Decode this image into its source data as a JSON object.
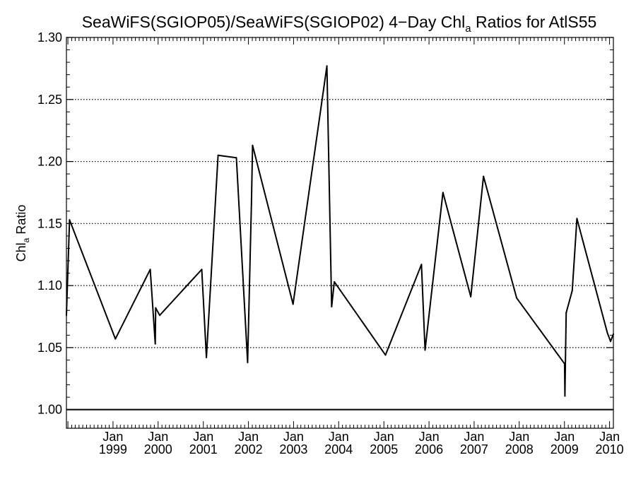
{
  "chart_data": {
    "type": "line",
    "title": {
      "main": "SeaWiFS(SGIOP05)/SeaWiFS(SGIOP02) 4−Day Chl",
      "sub": "a",
      "rest": " Ratios for AtlS55"
    },
    "ylabel": {
      "main": "Chl",
      "sub": "a",
      "rest": " Ratio"
    },
    "xlabel": "",
    "ylim": [
      0.985,
      1.3
    ],
    "yticks": [
      "1.00",
      "1.05",
      "1.10",
      "1.15",
      "1.20",
      "1.25",
      "1.30"
    ],
    "ytick_values": [
      1.0,
      1.05,
      1.1,
      1.15,
      1.2,
      1.25,
      1.3
    ],
    "xlim": [
      "1997-12-20",
      "2010-02-01"
    ],
    "xticks": [
      {
        "date": "1999-01-01",
        "month": "Jan",
        "year": "1999"
      },
      {
        "date": "2000-01-01",
        "month": "Jan",
        "year": "2000"
      },
      {
        "date": "2001-01-01",
        "month": "Jan",
        "year": "2001"
      },
      {
        "date": "2002-01-01",
        "month": "Jan",
        "year": "2002"
      },
      {
        "date": "2003-01-01",
        "month": "Jan",
        "year": "2003"
      },
      {
        "date": "2004-01-01",
        "month": "Jan",
        "year": "2004"
      },
      {
        "date": "2005-01-01",
        "month": "Jan",
        "year": "2005"
      },
      {
        "date": "2006-01-01",
        "month": "Jan",
        "year": "2006"
      },
      {
        "date": "2007-01-01",
        "month": "Jan",
        "year": "2007"
      },
      {
        "date": "2008-01-01",
        "month": "Jan",
        "year": "2008"
      },
      {
        "date": "2009-01-01",
        "month": "Jan",
        "year": "2009"
      },
      {
        "date": "2010-01-01",
        "month": "Jan",
        "year": "2010"
      }
    ],
    "grid": "horizontal-dotted",
    "reference_line": 1.0,
    "series": [
      {
        "x": [
          "1997-12-20",
          "1998-01-14",
          "1999-01-20",
          "1999-10-29",
          "1999-12-09",
          "1999-12-12",
          "2000-01-14",
          "2000-12-19",
          "2001-01-26",
          "2001-04-30",
          "2001-09-25",
          "2001-12-25",
          "2002-01-25",
          "2002-02-03",
          "2002-12-28",
          "2003-09-28",
          "2003-11-05",
          "2003-11-27",
          "2005-01-14",
          "2005-11-01",
          "2005-11-30",
          "2006-04-24",
          "2006-12-05",
          "2007-03-18",
          "2007-12-11",
          "2009-01-02",
          "2009-01-05",
          "2009-01-15",
          "2009-03-05",
          "2009-04-12",
          "2009-12-14",
          "2010-01-09",
          "2010-02-01"
        ],
        "y": [
          1.076,
          1.153,
          1.057,
          1.113,
          1.053,
          1.082,
          1.076,
          1.113,
          1.042,
          1.205,
          1.203,
          1.038,
          1.166,
          1.213,
          1.085,
          1.277,
          1.083,
          1.103,
          1.044,
          1.117,
          1.048,
          1.175,
          1.091,
          1.188,
          1.09,
          1.037,
          1.011,
          1.078,
          1.096,
          1.154,
          1.062,
          1.055,
          1.061
        ]
      }
    ]
  }
}
